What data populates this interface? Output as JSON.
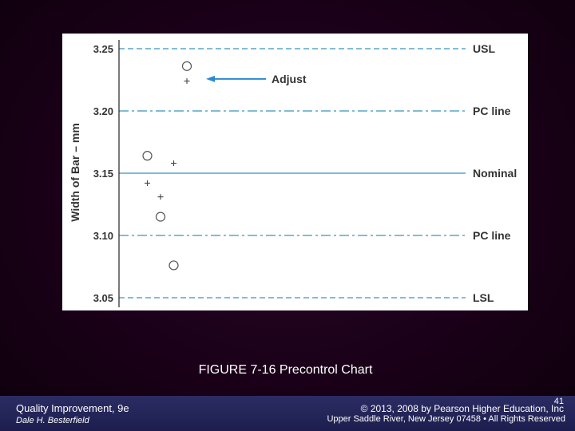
{
  "chart_data": {
    "type": "scatter",
    "ylabel": "Width of Bar – mm",
    "ylim": [
      3.05,
      3.26
    ],
    "yticks": [
      "3.25",
      "3.20",
      "3.15",
      "3.10",
      "3.05"
    ],
    "ytick_values": [
      3.25,
      3.2,
      3.15,
      3.1,
      3.05
    ],
    "reference_lines": [
      {
        "label": "USL",
        "value": 3.25,
        "style": "dashed",
        "color": "#5aa5c8"
      },
      {
        "label": "PC line",
        "value": 3.2,
        "style": "dash-dot",
        "color": "#5aa5c8"
      },
      {
        "label": "Nominal",
        "value": 3.15,
        "style": "solid",
        "color": "#5aa5c8"
      },
      {
        "label": "PC line",
        "value": 3.1,
        "style": "dash-dot",
        "color": "#5aa5c8"
      },
      {
        "label": "LSL",
        "value": 3.05,
        "style": "dashed",
        "color": "#5aa5c8"
      }
    ],
    "series": [
      {
        "marker": "circle",
        "points": [
          [
            1,
            3.164
          ],
          [
            2,
            3.115
          ],
          [
            3,
            3.076
          ],
          [
            4,
            3.236
          ]
        ]
      },
      {
        "marker": "plus",
        "points": [
          [
            1,
            3.142
          ],
          [
            2,
            3.131
          ],
          [
            3,
            3.158
          ],
          [
            4,
            3.224
          ]
        ]
      }
    ],
    "annotations": [
      {
        "text": "Adjust",
        "target_series": "circle",
        "target_index": 3,
        "arrow_color": "#2a8ad0"
      }
    ]
  },
  "caption": "FIGURE 7-16 Precontrol Chart",
  "footer": {
    "book_title": "Quality Improvement, 9e",
    "author": "Dale H. Besterfield",
    "slide_number": "41",
    "copyright": "© 2013, 2008 by Pearson Higher Education, Inc",
    "address": "Upper Saddle River, New Jersey 07458 • All Rights Reserved"
  }
}
